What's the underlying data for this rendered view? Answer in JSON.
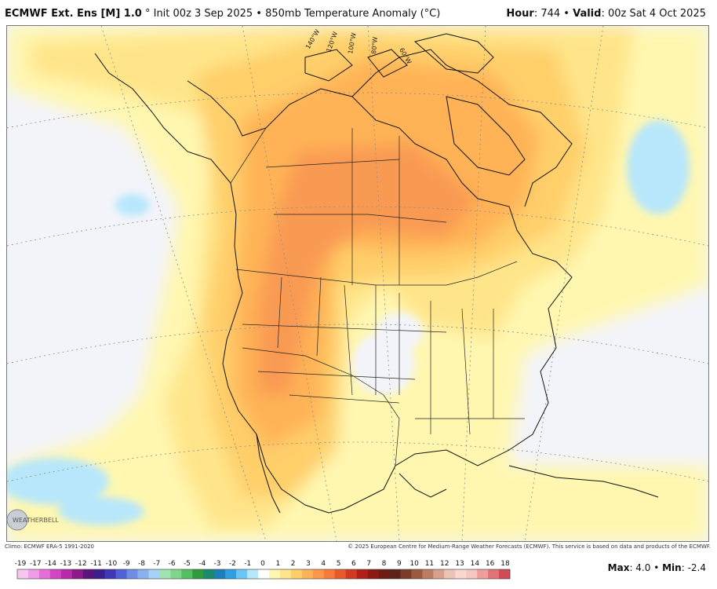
{
  "header": {
    "model": "ECMWF Ext. Ens [M] 1.0",
    "degree_symbol": "°",
    "init": "Init 00z 3 Sep 2025",
    "bullet": "•",
    "variable": "850mb Temperature Anomaly (°C)",
    "hour_label": "Hour",
    "hour_value": ": 744",
    "valid_label": "Valid",
    "valid_value": ": 00z Sat 4 Oct 2025"
  },
  "map": {
    "longitude_labels": [
      "140°W",
      "120°W",
      "100°W",
      "80°W",
      "60°W"
    ]
  },
  "footer": {
    "climo": "Climo: ECMWF ERA-5 1991-2020",
    "copyright": "© 2025 European Centre for Medium-Range Weather Forecasts (ECMWF). This service is based on data and products of the ECMWF."
  },
  "colorbar": {
    "ticks": [
      "-19",
      "-17",
      "-14",
      "-13",
      "-12",
      "-11",
      "-10",
      "-9",
      "-8",
      "-7",
      "-6",
      "-5",
      "-4",
      "-3",
      "-2",
      "-1",
      "0",
      "1",
      "2",
      "3",
      "4",
      "5",
      "6",
      "7",
      "8",
      "9",
      "10",
      "11",
      "12",
      "13",
      "14",
      "16",
      "18"
    ],
    "colors": [
      "#f7c6ef",
      "#ef9de4",
      "#e46fd6",
      "#d445c3",
      "#b72aa9",
      "#8e1a8a",
      "#5b157a",
      "#3b1f8c",
      "#3f39b5",
      "#5161d6",
      "#6f8de4",
      "#88b2ee",
      "#a8d2f5",
      "#9fe3b0",
      "#7fd58a",
      "#55bd62",
      "#2f9b3e",
      "#1a8a6e",
      "#1c7fb9",
      "#2f9fe0",
      "#6cc6f4",
      "#b8e7fb",
      "#ffffff",
      "#fff7b0",
      "#ffe58a",
      "#ffcf6a",
      "#ffb357",
      "#ff9748",
      "#f97a3a",
      "#e8592c",
      "#d2391f",
      "#b31f18",
      "#8e1812",
      "#6f1a12",
      "#5c2418",
      "#7a3b28",
      "#9b5a40",
      "#bb7d64",
      "#d6a08d",
      "#ecc4b7",
      "#f7d9cf",
      "#f6c6c0",
      "#ee9e9c",
      "#e07377",
      "#cf4b55"
    ]
  },
  "stats": {
    "max_label": "Max",
    "max_value": ": 4.0",
    "sep": " • ",
    "min_label": "Min",
    "min_value": ": -2.4"
  },
  "logo": {
    "text": "WEATHERBELL"
  },
  "colors": {
    "anom_neutral": "#f3f4fa",
    "anom_pos_1": "#fff7b0",
    "anom_pos_2": "#ffe58a",
    "anom_pos_3": "#ffcf6a",
    "anom_pos_4": "#ffb357",
    "anom_pos_5": "#f99a52",
    "anom_neg_1": "#b8e7fb"
  }
}
